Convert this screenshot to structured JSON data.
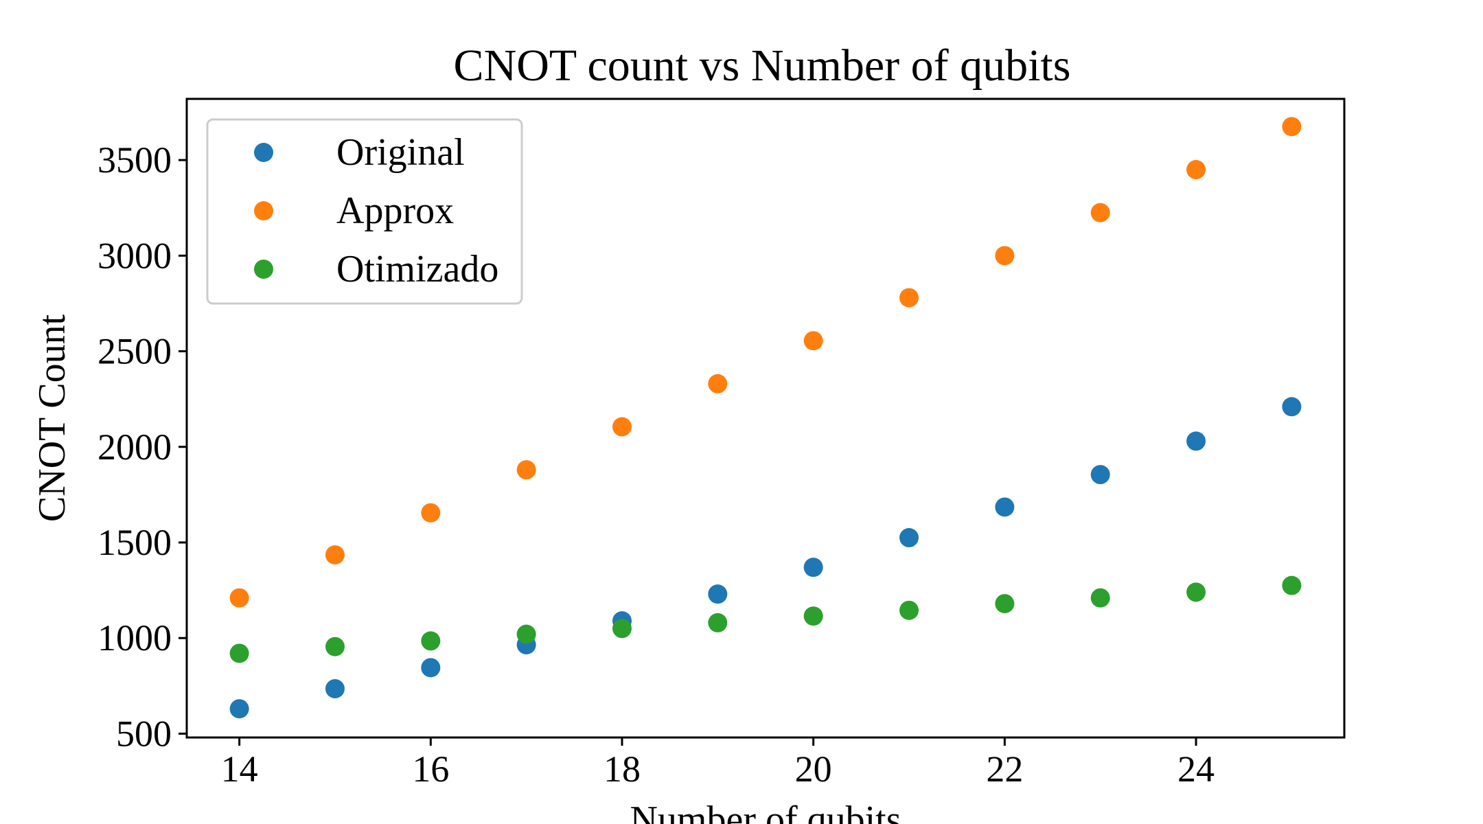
{
  "chart_data": {
    "type": "scatter",
    "title": "CNOT count vs Number of qubits",
    "xlabel": "Number of qubits",
    "ylabel": "CNOT Count",
    "xlim": [
      13.45,
      25.55
    ],
    "ylim": [
      480,
      3820
    ],
    "xticks": [
      14,
      16,
      18,
      20,
      22,
      24
    ],
    "yticks": [
      500,
      1000,
      1500,
      2000,
      2500,
      3000,
      3500
    ],
    "grid": false,
    "legend": "top-left",
    "x": [
      14,
      15,
      16,
      17,
      18,
      19,
      20,
      21,
      22,
      23,
      24,
      25
    ],
    "series": [
      {
        "name": "Original",
        "color": "#1f77b4",
        "values": [
          630,
          735,
          845,
          965,
          1090,
          1230,
          1370,
          1525,
          1685,
          1855,
          2030,
          2210
        ]
      },
      {
        "name": "Approx",
        "color": "#ff7f0e",
        "values": [
          1210,
          1435,
          1655,
          1880,
          2105,
          2330,
          2555,
          2780,
          3000,
          3225,
          3450,
          3675
        ]
      },
      {
        "name": "Otimizado",
        "color": "#2ca02c",
        "values": [
          920,
          955,
          985,
          1020,
          1050,
          1080,
          1115,
          1145,
          1180,
          1210,
          1240,
          1275
        ]
      }
    ]
  }
}
